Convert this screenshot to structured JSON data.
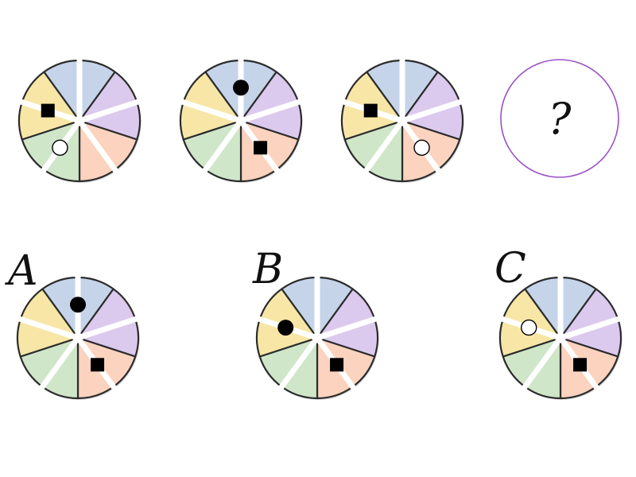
{
  "puzzle": {
    "colors": {
      "blue": "#c6d4ea",
      "purple": "#dcc9ee",
      "orange": "#fbd3bf",
      "green": "#cfe6c9",
      "yellow": "#f7e6a6",
      "outline": "#2c2c2c",
      "question_ring": "#9b4fc7"
    },
    "segment_order": [
      "blue",
      "purple",
      "orange",
      "green",
      "yellow"
    ],
    "sequence": [
      {
        "id": "seq-1",
        "marks": {
          "yellow": "square",
          "green": "circle-white"
        }
      },
      {
        "id": "seq-2",
        "marks": {
          "blue": "circle-black",
          "orange": "square"
        }
      },
      {
        "id": "seq-3",
        "marks": {
          "yellow": "square",
          "orange": "circle-white"
        }
      }
    ],
    "question": {
      "text": "?"
    },
    "options": [
      {
        "id": "option-a",
        "label": "A",
        "marks": {
          "blue": "circle-black",
          "orange": "square"
        }
      },
      {
        "id": "option-b",
        "label": "B",
        "marks": {
          "yellow": "circle-black",
          "orange": "square"
        }
      },
      {
        "id": "option-c",
        "label": "C",
        "marks": {
          "yellow": "circle-white",
          "orange": "square"
        }
      }
    ]
  }
}
